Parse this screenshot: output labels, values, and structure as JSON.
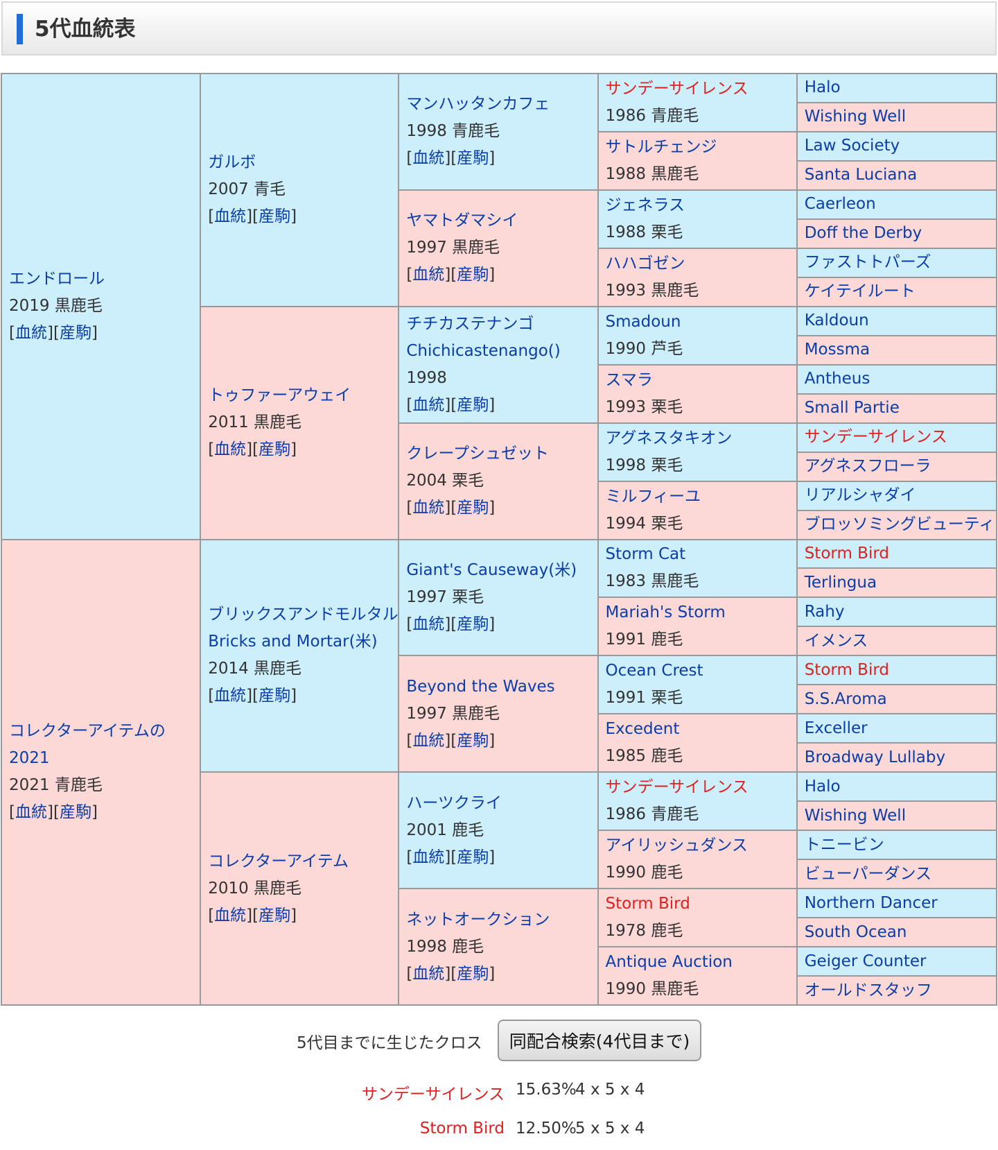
{
  "header": {
    "title": "5代血統表"
  },
  "link_labels": {
    "pedigree": "血統",
    "progeny": "産駒"
  },
  "horses": {
    "sire": {
      "name": "エンドロール",
      "info": "2019 黒鹿毛"
    },
    "sire_sire": {
      "name": "ガルボ",
      "info": "2007 青毛"
    },
    "sire_dam": {
      "name": "トゥファーアウェイ",
      "info": "2011 黒鹿毛"
    },
    "ss_s": {
      "name": "マンハッタンカフェ",
      "info": "1998 青鹿毛"
    },
    "ss_d": {
      "name": "ヤマトダマシイ",
      "info": "1997 黒鹿毛"
    },
    "sd_s": {
      "name": "チチカステナンゴ",
      "name2": "Chichicastenango()",
      "info": "1998"
    },
    "sd_d": {
      "name": "クレープシュゼット",
      "info": "2004 栗毛"
    },
    "g4_1": {
      "name": "サンデーサイレンス",
      "info": "1986 青鹿毛"
    },
    "g4_2": {
      "name": "サトルチェンジ",
      "info": "1988 黒鹿毛"
    },
    "g4_3": {
      "name": "ジェネラス",
      "info": "1988 栗毛"
    },
    "g4_4": {
      "name": "ハハゴゼン",
      "info": "1993 黒鹿毛"
    },
    "g4_5": {
      "name": "Smadoun",
      "info": "1990 芦毛"
    },
    "g4_6": {
      "name": "スマラ",
      "info": "1993 栗毛"
    },
    "g4_7": {
      "name": "アグネスタキオン",
      "info": "1998 栗毛"
    },
    "g4_8": {
      "name": "ミルフィーユ",
      "info": "1994 栗毛"
    },
    "dam": {
      "name": "コレクターアイテムの2021",
      "info": "2021 青鹿毛"
    },
    "dam_sire": {
      "name": "ブリックスアンドモルタル",
      "name2": "Bricks and Mortar(米)",
      "info": "2014 黒鹿毛"
    },
    "dam_dam": {
      "name": "コレクターアイテム",
      "info": "2010 黒鹿毛"
    },
    "ds_s": {
      "name": "Giant's Causeway(米)",
      "info": "1997 栗毛"
    },
    "ds_d": {
      "name": "Beyond the Waves",
      "info": "1997 黒鹿毛"
    },
    "dd_s": {
      "name": "ハーツクライ",
      "info": "2001 鹿毛"
    },
    "dd_d": {
      "name": "ネットオークション",
      "info": "1998 鹿毛"
    },
    "g4_9": {
      "name": "Storm Cat",
      "info": "1983 黒鹿毛"
    },
    "g4_10": {
      "name": "Mariah's Storm",
      "info": "1991 鹿毛"
    },
    "g4_11": {
      "name": "Ocean Crest",
      "info": "1991 栗毛"
    },
    "g4_12": {
      "name": "Excedent",
      "info": "1985 鹿毛"
    },
    "g4_13": {
      "name": "サンデーサイレンス",
      "info": "1986 青鹿毛"
    },
    "g4_14": {
      "name": "アイリッシュダンス",
      "info": "1990 鹿毛"
    },
    "g4_15": {
      "name": "Storm Bird",
      "info": "1978 鹿毛"
    },
    "g4_16": {
      "name": "Antique Auction",
      "info": "1990 黒鹿毛"
    }
  },
  "gen5": [
    "Halo",
    "Wishing Well",
    "Law Society",
    "Santa Luciana",
    "Caerleon",
    "Doff the Derby",
    "ファストトパーズ",
    "ケイテイルート",
    "Kaldoun",
    "Mossma",
    "Antheus",
    "Small Partie",
    "サンデーサイレンス",
    "アグネスフローラ",
    "リアルシャダイ",
    "ブロッソミングビューティ",
    "Storm Bird",
    "Terlingua",
    "Rahy",
    "イメンス",
    "Storm Bird",
    "S.S.Aroma",
    "Exceller",
    "Broadway Lullaby",
    "Halo",
    "Wishing Well",
    "トニービン",
    "ビューパーダンス",
    "Northern Dancer",
    "South Ocean",
    "Geiger Counter",
    "オールドスタッフ"
  ],
  "crosses": {
    "label": "5代目までに生じたクロス",
    "search_button": "同配合検索(4代目まで)",
    "items": [
      {
        "name": "サンデーサイレンス",
        "percent": "15.63%",
        "generations": "4 x 5 x 4"
      },
      {
        "name": "Storm Bird",
        "percent": "12.50%",
        "generations": "5 x 5 x 4"
      }
    ]
  },
  "colors": {
    "male_bg": "#cdeffb",
    "female_bg": "#fcd9d6",
    "link": "#0b3da8",
    "highlight": "#e02020",
    "header_bar": "#1f6fd6"
  }
}
